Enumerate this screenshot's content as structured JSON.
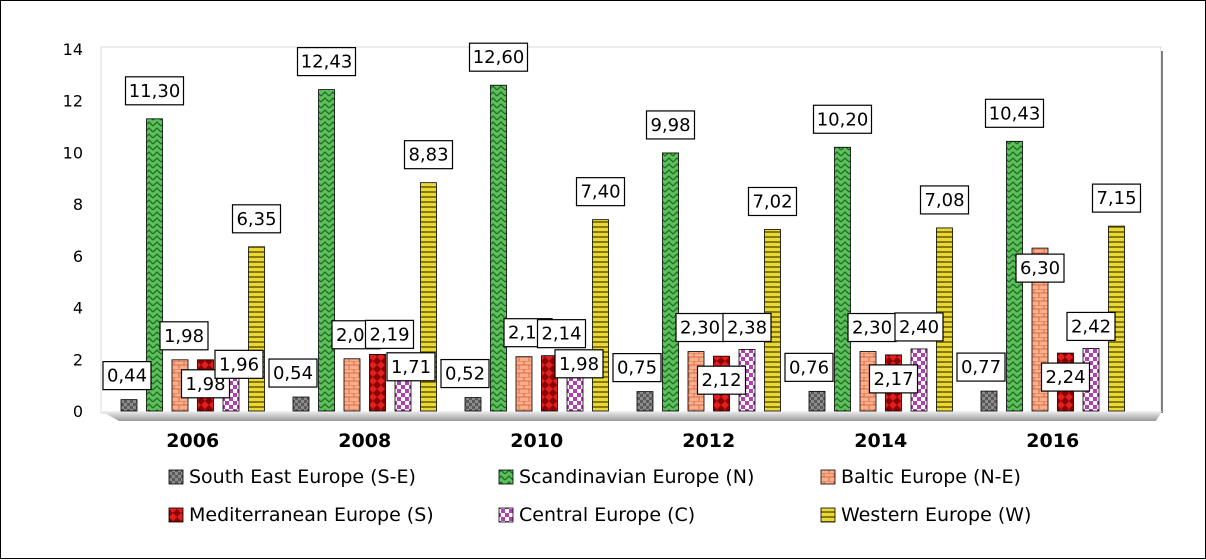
{
  "chart_data": {
    "type": "bar",
    "title": "",
    "xlabel": "",
    "ylabel": "",
    "ylim": [
      0,
      14
    ],
    "yticks": [
      0,
      2,
      4,
      6,
      8,
      10,
      12,
      14
    ],
    "grid": false,
    "legend_position": "bottom",
    "categories": [
      "2006",
      "2008",
      "2010",
      "2012",
      "2014",
      "2016"
    ],
    "series": [
      {
        "name": "South East Europe (S-E)",
        "values": [
          0.44,
          0.54,
          0.52,
          0.75,
          0.76,
          0.77
        ],
        "labels": [
          "0,44",
          "0,54",
          "0,52",
          "0,75",
          "0,76",
          "0,77"
        ],
        "color": "#7f7f7f",
        "pattern": "grey-checker"
      },
      {
        "name": "Scandinavian Europe (N)",
        "values": [
          11.3,
          12.43,
          12.6,
          9.98,
          10.2,
          10.43
        ],
        "labels": [
          "11,30",
          "12,43",
          "12,60",
          "9,98",
          "10,20",
          "10,43"
        ],
        "color": "#4cae4c",
        "pattern": "green-zigzag"
      },
      {
        "name": "Baltic Europe (N-E)",
        "values": [
          1.98,
          2.02,
          2.1,
          2.3,
          2.3,
          6.3
        ],
        "labels": [
          "1,98",
          "2,02",
          "2,10",
          "2,30",
          "2,30",
          "6,30"
        ],
        "color": "#f4a582",
        "pattern": "brick"
      },
      {
        "name": "Mediterranean Europe (S)",
        "values": [
          1.98,
          2.19,
          2.14,
          2.12,
          2.17,
          2.24
        ],
        "labels": [
          "1,98",
          "2,19",
          "2,14",
          "2,12",
          "2,17",
          "2,24"
        ],
        "color": "#c00000",
        "pattern": "red-diamond"
      },
      {
        "name": "Central Europe (C)",
        "values": [
          1.96,
          1.71,
          1.98,
          2.38,
          2.4,
          2.42
        ],
        "labels": [
          "1,96",
          "1,71",
          "1,98",
          "2,38",
          "2,40",
          "2,42"
        ],
        "color": "#cc66cc",
        "pattern": "pink-checker"
      },
      {
        "name": "Western Europe (W)",
        "values": [
          6.35,
          8.83,
          7.4,
          7.02,
          7.08,
          7.15
        ],
        "labels": [
          "6,35",
          "8,83",
          "7,40",
          "7,02",
          "7,08",
          "7,15"
        ],
        "color": "#d4c020",
        "pattern": "yellow-stripes"
      }
    ]
  }
}
